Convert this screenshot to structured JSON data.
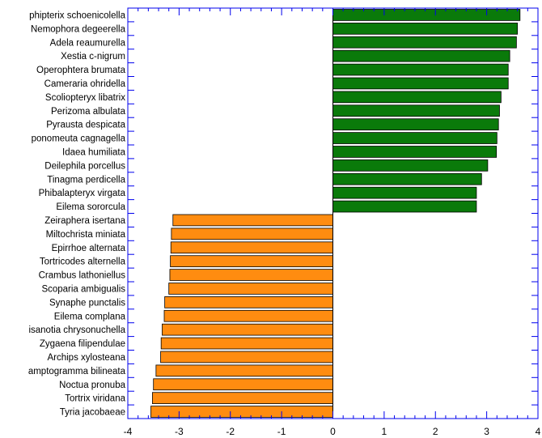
{
  "chart_data": {
    "type": "bar",
    "orientation": "horizontal",
    "xlim": [
      -4,
      4
    ],
    "xticks": [
      -4,
      -3,
      -2,
      -1,
      0,
      1,
      2,
      3,
      4
    ],
    "grid": false,
    "colors": {
      "positive": "#0a7a0a",
      "negative": "#ff8c10",
      "axis": "#0000ee"
    },
    "categories": [
      "phipterix schoenicolella",
      "Nemophora degeerella",
      "Adela reaumurella",
      "Xestia c-nigrum",
      "Operophtera brumata",
      "Cameraria ohridella",
      "Scoliopteryx libatrix",
      "Perizoma albulata",
      "Pyrausta despicata",
      "ponomeuta cagnagella",
      "Idaea humiliata",
      "Deilephila porcellus",
      "Tinagma perdicella",
      "Phibalapteryx virgata",
      "Eilema sororcula",
      "Zeiraphera isertana",
      "Miltochrista miniata",
      "Epirrhoe alternata",
      "Tortricodes alternella",
      "Crambus lathoniellus",
      "Scoparia ambigualis",
      "Synaphe punctalis",
      "Eilema complana",
      "isanotia chrysonuchella",
      "Zygaena filipendulae",
      "Archips xylosteana",
      "amptogramma bilineata",
      "Noctua pronuba",
      "Tortrix viridana",
      "Tyria jacobaeae"
    ],
    "values": [
      3.65,
      3.6,
      3.58,
      3.45,
      3.42,
      3.42,
      3.28,
      3.25,
      3.23,
      3.2,
      3.19,
      3.02,
      2.9,
      2.8,
      2.8,
      -3.12,
      -3.15,
      -3.16,
      -3.17,
      -3.18,
      -3.2,
      -3.28,
      -3.29,
      -3.33,
      -3.35,
      -3.36,
      -3.45,
      -3.5,
      -3.52,
      -3.55
    ]
  }
}
